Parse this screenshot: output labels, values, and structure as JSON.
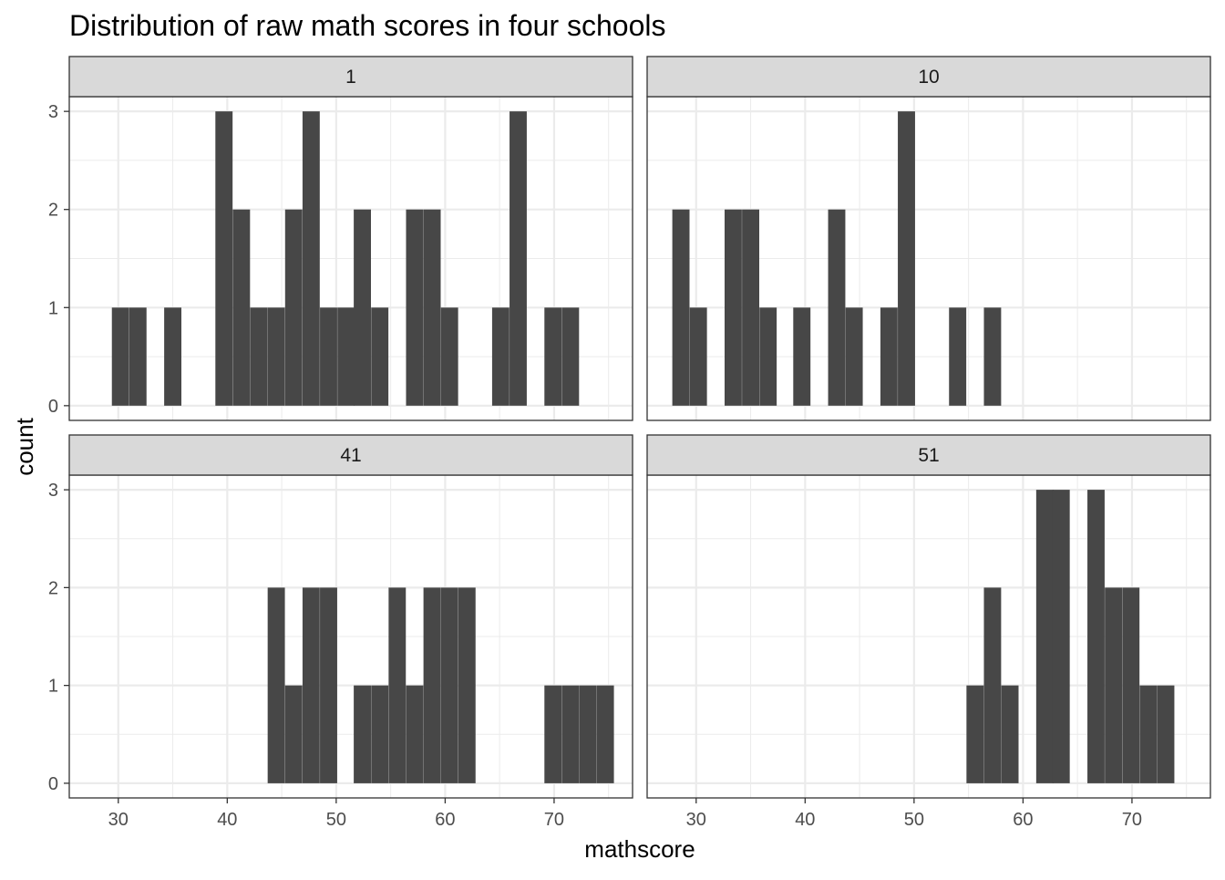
{
  "chart_data": {
    "type": "bar",
    "title": "Distribution of raw math scores in four schools",
    "xlabel": "mathscore",
    "ylabel": "count",
    "xlim": [
      25.5,
      77.2
    ],
    "ylim": [
      -0.15,
      3.15
    ],
    "x_ticks": [
      30,
      40,
      50,
      60,
      70
    ],
    "y_ticks": [
      0,
      1,
      2,
      3
    ],
    "bin_width": 1.58,
    "grid": true,
    "panels": [
      {
        "label": "1",
        "bins": [
          {
            "x": 30.2,
            "count": 1
          },
          {
            "x": 31.8,
            "count": 1
          },
          {
            "x": 35.0,
            "count": 1
          },
          {
            "x": 39.7,
            "count": 3
          },
          {
            "x": 41.3,
            "count": 2
          },
          {
            "x": 42.9,
            "count": 1
          },
          {
            "x": 44.5,
            "count": 1
          },
          {
            "x": 46.1,
            "count": 2
          },
          {
            "x": 47.7,
            "count": 3
          },
          {
            "x": 49.3,
            "count": 1
          },
          {
            "x": 50.9,
            "count": 1
          },
          {
            "x": 52.4,
            "count": 2
          },
          {
            "x": 54.0,
            "count": 1
          },
          {
            "x": 57.2,
            "count": 2
          },
          {
            "x": 58.8,
            "count": 2
          },
          {
            "x": 60.4,
            "count": 1
          },
          {
            "x": 65.1,
            "count": 1
          },
          {
            "x": 66.7,
            "count": 3
          },
          {
            "x": 69.9,
            "count": 1
          },
          {
            "x": 71.5,
            "count": 1
          }
        ]
      },
      {
        "label": "10",
        "bins": [
          {
            "x": 28.6,
            "count": 2
          },
          {
            "x": 30.2,
            "count": 1
          },
          {
            "x": 33.4,
            "count": 2
          },
          {
            "x": 35.0,
            "count": 2
          },
          {
            "x": 36.6,
            "count": 1
          },
          {
            "x": 39.7,
            "count": 1
          },
          {
            "x": 42.9,
            "count": 2
          },
          {
            "x": 44.5,
            "count": 1
          },
          {
            "x": 47.7,
            "count": 1
          },
          {
            "x": 49.3,
            "count": 3
          },
          {
            "x": 54.0,
            "count": 1
          },
          {
            "x": 57.2,
            "count": 1
          }
        ]
      },
      {
        "label": "41",
        "bins": [
          {
            "x": 44.5,
            "count": 2
          },
          {
            "x": 46.1,
            "count": 1
          },
          {
            "x": 47.7,
            "count": 2
          },
          {
            "x": 49.3,
            "count": 2
          },
          {
            "x": 52.4,
            "count": 1
          },
          {
            "x": 54.0,
            "count": 1
          },
          {
            "x": 55.6,
            "count": 2
          },
          {
            "x": 57.2,
            "count": 1
          },
          {
            "x": 58.8,
            "count": 2
          },
          {
            "x": 60.4,
            "count": 2
          },
          {
            "x": 62.0,
            "count": 2
          },
          {
            "x": 69.9,
            "count": 1
          },
          {
            "x": 71.5,
            "count": 1
          },
          {
            "x": 73.1,
            "count": 1
          },
          {
            "x": 74.7,
            "count": 1
          }
        ]
      },
      {
        "label": "51",
        "bins": [
          {
            "x": 55.6,
            "count": 1
          },
          {
            "x": 57.2,
            "count": 2
          },
          {
            "x": 58.8,
            "count": 1
          },
          {
            "x": 62.0,
            "count": 3
          },
          {
            "x": 63.5,
            "count": 3
          },
          {
            "x": 66.7,
            "count": 3
          },
          {
            "x": 68.3,
            "count": 2
          },
          {
            "x": 69.9,
            "count": 2
          },
          {
            "x": 71.5,
            "count": 1
          },
          {
            "x": 73.1,
            "count": 1
          }
        ]
      }
    ]
  }
}
